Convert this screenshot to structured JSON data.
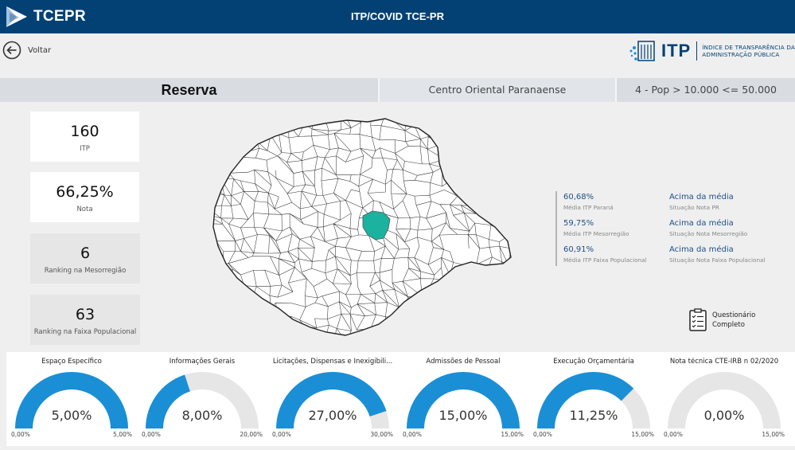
{
  "header": {
    "brand": "TCEPR",
    "title": "ITP/COVID TCE-PR"
  },
  "nav": {
    "back_label": "Voltar"
  },
  "itp_logo": {
    "word": "ITP",
    "subtitle_line1": "ÍNDICE DE TRANSPARÊNCIA DA",
    "subtitle_line2": "ADMINISTRAÇÃO PÚBLICA"
  },
  "info": {
    "municipio": "Reserva",
    "mesorregiao": "Centro Oriental Paranaense",
    "faixa": "4 - Pop > 10.000 <= 50.000"
  },
  "cards": [
    {
      "value": "160",
      "label": "ITP"
    },
    {
      "value": "66,25%",
      "label": "Nota"
    },
    {
      "value": "6",
      "label": "Ranking na Mesorregião"
    },
    {
      "value": "63",
      "label": "Ranking na Faixa Populacional"
    }
  ],
  "stats": [
    {
      "value": "60,68%",
      "label": "Média ITP Paraná",
      "status": "Acima da média",
      "status_label": "Situação Nota PR"
    },
    {
      "value": "59,75%",
      "label": "Média ITP Mesorregião",
      "status": "Acima da média",
      "status_label": "Situação Nota Mesorregião"
    },
    {
      "value": "60,91%",
      "label": "Média ITP Faixa Populacional",
      "status": "Acima da média",
      "status_label": "Situação Nota Faixa Populacional"
    }
  ],
  "questionario": {
    "line1": "Questionário",
    "line2": "Completo"
  },
  "gauges": [
    {
      "title": "Espaço Específico",
      "value": 5.0,
      "max": 5.0,
      "value_label": "5,00%",
      "min_label": "0,00%",
      "max_label": "5,00%"
    },
    {
      "title": "Informações Gerais",
      "value": 8.0,
      "max": 20.0,
      "value_label": "8,00%",
      "min_label": "0,00%",
      "max_label": "20,00%"
    },
    {
      "title": "Licitações, Dispensas e Inexigibili...",
      "value": 27.0,
      "max": 30.0,
      "value_label": "27,00%",
      "min_label": "0,00%",
      "max_label": "30,00%"
    },
    {
      "title": "Admissões de Pessoal",
      "value": 15.0,
      "max": 15.0,
      "value_label": "15,00%",
      "min_label": "0,00%",
      "max_label": "15,00%"
    },
    {
      "title": "Execução Orçamentária",
      "value": 11.25,
      "max": 15.0,
      "value_label": "11,25%",
      "min_label": "0,00%",
      "max_label": "15,00%"
    },
    {
      "title": "Nota técnica CTE-IRB n 02/2020",
      "value": 0.0,
      "max": 15.0,
      "value_label": "0,00%",
      "min_label": "0,00%",
      "max_label": "15,00%"
    }
  ],
  "colors": {
    "header": "#034175",
    "gauge_fill": "#1a8fd6",
    "gauge_track": "#e6e6e6",
    "highlight": "#1bb39f"
  }
}
